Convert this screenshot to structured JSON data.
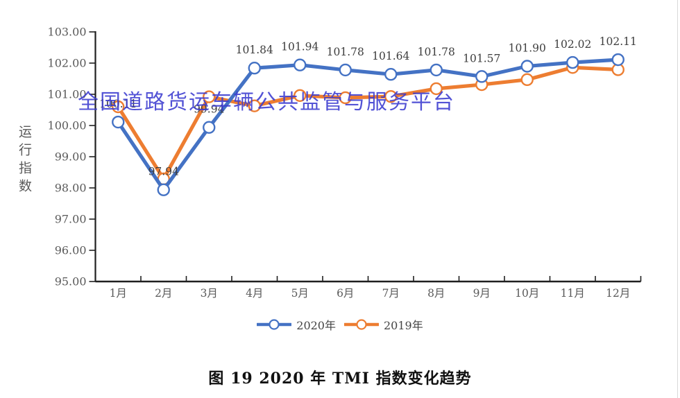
{
  "watermark": {
    "text": "全国道路货运车辆公共监管与服务平台",
    "color": "#3b3bd0"
  },
  "caption": "图 19 2020 年 TMI 指数变化趋势",
  "chart_data": {
    "type": "line",
    "title": "图 19 2020 年 TMI 指数变化趋势",
    "ylabel": "运行指数",
    "xlabel": "",
    "categories": [
      "1月",
      "2月",
      "3月",
      "4月",
      "5月",
      "6月",
      "7月",
      "8月",
      "9月",
      "10月",
      "11月",
      "12月"
    ],
    "ylim": [
      95,
      103
    ],
    "ytick_labels": [
      "95.00",
      "96.00",
      "97.00",
      "98.00",
      "99.00",
      "100.00",
      "101.00",
      "102.00",
      "103.00"
    ],
    "grid": false,
    "legend_position": "bottom-center",
    "axis_color": "#1f1f1f",
    "tick_label_color": "#595959",
    "point_label_color": "#3d3d3d",
    "series": [
      {
        "name": "2020年",
        "color": "#4472C4",
        "show_point_labels": true,
        "values": [
          100.11,
          97.94,
          99.94,
          101.84,
          101.94,
          101.78,
          101.64,
          101.78,
          101.57,
          101.9,
          102.02,
          102.11
        ],
        "point_labels": [
          "100.11",
          "97.94",
          "99.94",
          "101.84",
          "101.94",
          "101.78",
          "101.64",
          "101.78",
          "101.57",
          "101.90",
          "102.02",
          "102.11"
        ]
      },
      {
        "name": "2019年",
        "color": "#ED7D31",
        "show_point_labels": false,
        "values": [
          100.6,
          98.29,
          100.92,
          100.63,
          100.96,
          100.89,
          100.93,
          101.18,
          101.31,
          101.47,
          101.86,
          101.79
        ]
      }
    ]
  }
}
